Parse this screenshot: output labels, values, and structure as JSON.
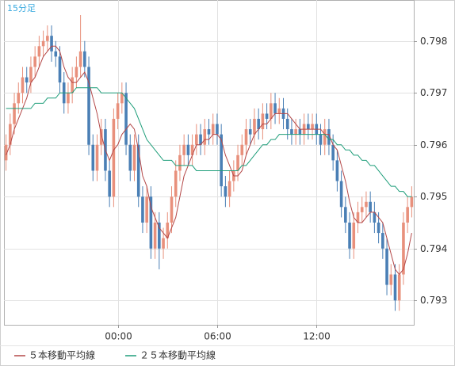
{
  "chart_data": {
    "type": "candlestick",
    "timeframe_label": "15分足",
    "categories": [
      null,
      null,
      null,
      null,
      null,
      null,
      null,
      null,
      null,
      null,
      null,
      null,
      null,
      null,
      null,
      null,
      null,
      null,
      null,
      null,
      null,
      null,
      null,
      null,
      null,
      null,
      null,
      "00:00",
      null,
      null,
      null,
      null,
      null,
      null,
      null,
      null,
      null,
      null,
      null,
      null,
      null,
      null,
      null,
      null,
      null,
      null,
      null,
      null,
      null,
      null,
      null,
      "06:00",
      null,
      null,
      null,
      null,
      null,
      null,
      null,
      null,
      null,
      null,
      null,
      null,
      null,
      null,
      null,
      null,
      null,
      null,
      null,
      null,
      null,
      null,
      null,
      "12:00",
      null,
      null,
      null,
      null,
      null,
      null,
      null,
      null,
      null,
      null,
      null,
      null,
      null,
      null,
      null,
      null,
      null,
      null,
      null,
      null,
      null,
      null,
      null
    ],
    "open": [
      0.7957,
      0.796,
      0.7964,
      0.7968,
      0.797,
      0.7973,
      0.7972,
      0.7975,
      0.7977,
      0.7979,
      0.798,
      0.7981,
      0.7978,
      0.7977,
      0.7972,
      0.7968,
      0.797,
      0.7973,
      0.7975,
      0.7978,
      0.7975,
      0.796,
      0.7955,
      0.796,
      0.7963,
      0.7955,
      0.795,
      0.7965,
      0.7968,
      0.797,
      0.796,
      0.7955,
      0.796,
      0.795,
      0.7945,
      0.795,
      0.794,
      0.7945,
      0.794,
      0.7942,
      0.7945,
      0.795,
      0.7955,
      0.7958,
      0.796,
      0.7958,
      0.796,
      0.7962,
      0.796,
      0.7963,
      0.7962,
      0.7964,
      0.7962,
      0.7952,
      0.795,
      0.7953,
      0.7955,
      0.7958,
      0.796,
      0.7963,
      0.7962,
      0.7965,
      0.7963,
      0.7966,
      0.7965,
      0.7968,
      0.7966,
      0.7967,
      0.7965,
      0.7963,
      0.7962,
      0.7963,
      0.7962,
      0.7964,
      0.7963,
      0.7964,
      0.7962,
      0.796,
      0.7963,
      0.796,
      0.7957,
      0.7953,
      0.7948,
      0.7945,
      0.794,
      0.7945,
      0.7947,
      0.7948,
      0.7949,
      0.7947,
      0.7945,
      0.7943,
      0.794,
      0.7933,
      0.7935,
      0.793,
      0.7935,
      0.7945,
      0.7948
    ],
    "high": [
      0.7962,
      0.7966,
      0.797,
      0.7972,
      0.7975,
      0.7975,
      0.7977,
      0.7979,
      0.7981,
      0.7982,
      0.7983,
      0.7983,
      0.798,
      0.7979,
      0.7974,
      0.7972,
      0.7975,
      0.7977,
      0.7985,
      0.798,
      0.7977,
      0.7962,
      0.7962,
      0.7965,
      0.7965,
      0.7957,
      0.7967,
      0.797,
      0.7972,
      0.7972,
      0.7962,
      0.7962,
      0.7962,
      0.7952,
      0.7952,
      0.7952,
      0.7947,
      0.7947,
      0.7944,
      0.7947,
      0.7952,
      0.7957,
      0.796,
      0.7962,
      0.7962,
      0.7962,
      0.7964,
      0.7964,
      0.7965,
      0.7965,
      0.7966,
      0.7966,
      0.7964,
      0.7954,
      0.7955,
      0.7957,
      0.796,
      0.7962,
      0.7965,
      0.7965,
      0.7967,
      0.7967,
      0.7968,
      0.7968,
      0.797,
      0.797,
      0.7969,
      0.7969,
      0.7967,
      0.7965,
      0.7965,
      0.7965,
      0.7966,
      0.7966,
      0.7966,
      0.7966,
      0.7964,
      0.7965,
      0.7965,
      0.7962,
      0.7959,
      0.7955,
      0.795,
      0.7947,
      0.7947,
      0.7949,
      0.795,
      0.7951,
      0.7951,
      0.7949,
      0.7947,
      0.7945,
      0.7942,
      0.7937,
      0.7937,
      0.7937,
      0.7947,
      0.795,
      0.7952
    ],
    "low": [
      0.7955,
      0.7958,
      0.7962,
      0.7966,
      0.7968,
      0.797,
      0.797,
      0.7973,
      0.7975,
      0.7977,
      0.7978,
      0.7976,
      0.7975,
      0.797,
      0.7966,
      0.7966,
      0.7968,
      0.7971,
      0.7973,
      0.7973,
      0.7958,
      0.7953,
      0.7953,
      0.7958,
      0.7953,
      0.7948,
      0.7948,
      0.7963,
      0.7966,
      0.7958,
      0.7953,
      0.7953,
      0.7948,
      0.7943,
      0.7943,
      0.7938,
      0.7938,
      0.7936,
      0.7938,
      0.794,
      0.7943,
      0.7948,
      0.7953,
      0.7956,
      0.7956,
      0.7956,
      0.7958,
      0.7958,
      0.7958,
      0.796,
      0.796,
      0.796,
      0.795,
      0.7948,
      0.7948,
      0.7951,
      0.7953,
      0.7956,
      0.7958,
      0.796,
      0.796,
      0.7961,
      0.7961,
      0.7963,
      0.7963,
      0.7964,
      0.7964,
      0.7963,
      0.7961,
      0.796,
      0.796,
      0.796,
      0.796,
      0.7961,
      0.7961,
      0.796,
      0.7958,
      0.7958,
      0.7958,
      0.7955,
      0.7951,
      0.7946,
      0.7943,
      0.7938,
      0.7938,
      0.7943,
      0.7945,
      0.7946,
      0.7945,
      0.7943,
      0.7941,
      0.7938,
      0.7931,
      0.7931,
      0.7928,
      0.7928,
      0.7933,
      0.7943,
      0.7946
    ],
    "close": [
      0.796,
      0.7964,
      0.7968,
      0.797,
      0.7973,
      0.7972,
      0.7975,
      0.7977,
      0.7979,
      0.798,
      0.7981,
      0.7978,
      0.7977,
      0.7972,
      0.7968,
      0.797,
      0.7973,
      0.7975,
      0.7978,
      0.7975,
      0.796,
      0.7955,
      0.796,
      0.7963,
      0.7955,
      0.795,
      0.7965,
      0.7968,
      0.797,
      0.796,
      0.7955,
      0.796,
      0.795,
      0.7945,
      0.795,
      0.794,
      0.7945,
      0.794,
      0.7942,
      0.7945,
      0.795,
      0.7955,
      0.7958,
      0.796,
      0.7958,
      0.796,
      0.7962,
      0.796,
      0.7963,
      0.7962,
      0.7964,
      0.7962,
      0.7952,
      0.795,
      0.7953,
      0.7955,
      0.7958,
      0.796,
      0.7963,
      0.7962,
      0.7965,
      0.7963,
      0.7966,
      0.7965,
      0.7968,
      0.7966,
      0.7967,
      0.7965,
      0.7963,
      0.7962,
      0.7963,
      0.7962,
      0.7964,
      0.7963,
      0.7964,
      0.7962,
      0.796,
      0.7963,
      0.796,
      0.7957,
      0.7953,
      0.7948,
      0.7945,
      0.794,
      0.7945,
      0.7947,
      0.7948,
      0.7949,
      0.7947,
      0.7945,
      0.7943,
      0.794,
      0.7933,
      0.7935,
      0.793,
      0.7935,
      0.7945,
      0.7948,
      0.795
    ],
    "up_color": "#e8907c",
    "down_color": "#4a7fb5",
    "series": [
      {
        "name": "５本移動平均線",
        "color": "#b44848",
        "values": [
          0.7958,
          0.796,
          0.7963,
          0.7965,
          0.7967,
          0.7969,
          0.7972,
          0.7973,
          0.7975,
          0.7977,
          0.7978,
          0.7979,
          0.7979,
          0.7978,
          0.7975,
          0.7973,
          0.7972,
          0.7972,
          0.7973,
          0.7974,
          0.7972,
          0.7969,
          0.7966,
          0.7962,
          0.7959,
          0.7957,
          0.7959,
          0.796,
          0.7962,
          0.7963,
          0.7964,
          0.7963,
          0.7959,
          0.7954,
          0.7952,
          0.7948,
          0.7946,
          0.7944,
          0.7943,
          0.7942,
          0.7944,
          0.7946,
          0.795,
          0.7954,
          0.7956,
          0.7958,
          0.796,
          0.796,
          0.7961,
          0.7961,
          0.7962,
          0.7962,
          0.7961,
          0.7958,
          0.7956,
          0.7954,
          0.7954,
          0.7955,
          0.7958,
          0.796,
          0.7962,
          0.7963,
          0.7964,
          0.7964,
          0.7965,
          0.7966,
          0.7966,
          0.7966,
          0.7966,
          0.7965,
          0.7964,
          0.7963,
          0.7963,
          0.7963,
          0.7963,
          0.7963,
          0.7963,
          0.7962,
          0.7962,
          0.796,
          0.7959,
          0.7956,
          0.7953,
          0.7949,
          0.7946,
          0.7945,
          0.7945,
          0.7946,
          0.7947,
          0.7947,
          0.7946,
          0.7945,
          0.7942,
          0.7939,
          0.7936,
          0.7935,
          0.7936,
          0.7939,
          0.7943
        ]
      },
      {
        "name": "２５本移動平均線",
        "color": "#1f9e7a",
        "values": [
          0.7967,
          0.7967,
          0.7967,
          0.7967,
          0.7967,
          0.7967,
          0.7967,
          0.7968,
          0.7968,
          0.7968,
          0.7969,
          0.7969,
          0.7969,
          0.797,
          0.797,
          0.797,
          0.797,
          0.7971,
          0.7971,
          0.7971,
          0.7971,
          0.7971,
          0.7971,
          0.797,
          0.797,
          0.797,
          0.797,
          0.797,
          0.797,
          0.7969,
          0.7968,
          0.7967,
          0.7965,
          0.7963,
          0.7961,
          0.796,
          0.7959,
          0.7958,
          0.7957,
          0.7957,
          0.7957,
          0.7956,
          0.7956,
          0.7956,
          0.7956,
          0.7956,
          0.7955,
          0.7955,
          0.7955,
          0.7955,
          0.7955,
          0.7955,
          0.7955,
          0.7955,
          0.7955,
          0.7955,
          0.7955,
          0.7956,
          0.7956,
          0.7957,
          0.7958,
          0.7959,
          0.796,
          0.796,
          0.7961,
          0.7961,
          0.7962,
          0.7962,
          0.7962,
          0.7962,
          0.7962,
          0.7962,
          0.7962,
          0.7962,
          0.7962,
          0.7962,
          0.7962,
          0.7962,
          0.7961,
          0.7961,
          0.796,
          0.796,
          0.7959,
          0.7959,
          0.7958,
          0.7958,
          0.7957,
          0.7957,
          0.7956,
          0.7956,
          0.7955,
          0.7954,
          0.7953,
          0.7952,
          0.7952,
          0.7951,
          0.7951,
          0.795,
          0.795
        ]
      }
    ],
    "ylim": [
      0.79253,
      0.79879
    ],
    "yticks": [
      0.793,
      0.794,
      0.795,
      0.796,
      0.797,
      0.798
    ],
    "y_axis_side": "right",
    "grid": true
  }
}
